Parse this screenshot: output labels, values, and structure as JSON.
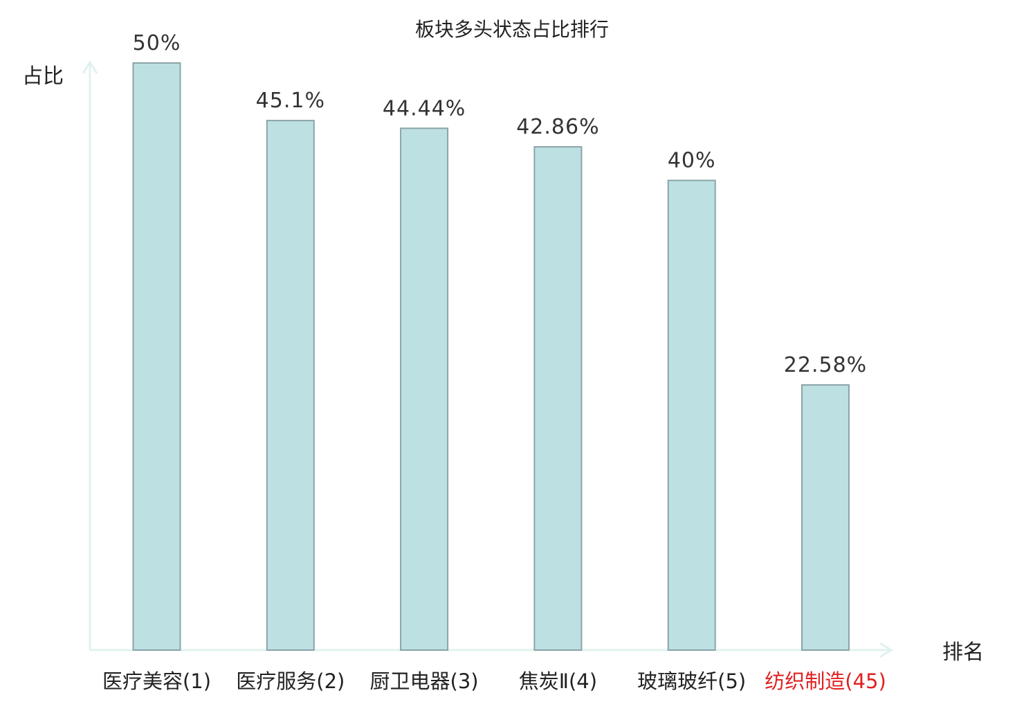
{
  "chart_data": {
    "type": "bar",
    "title": "板块多头状态占比排行",
    "ylabel": "占比",
    "xlabel": "排名",
    "ylim": [
      0,
      50
    ],
    "grid": false,
    "legend": "none",
    "categories": [
      "医疗美容(1)",
      "医疗服务(2)",
      "厨卫电器(3)",
      "焦炭Ⅱ(4)",
      "玻璃玻纤(5)",
      "纺织制造(45)"
    ],
    "values": [
      50,
      45.1,
      44.44,
      42.86,
      40,
      22.58
    ],
    "value_labels": [
      "50%",
      "45.1%",
      "44.44%",
      "42.86%",
      "40%",
      "22.58%"
    ],
    "highlight_index": 5,
    "colors": {
      "bar_fill": "#bde0e3",
      "bar_stroke": "#8aa4a7",
      "axis": "#e0f2ef",
      "label": "#222222",
      "value_label": "#333333",
      "highlight": "#e02020"
    }
  }
}
